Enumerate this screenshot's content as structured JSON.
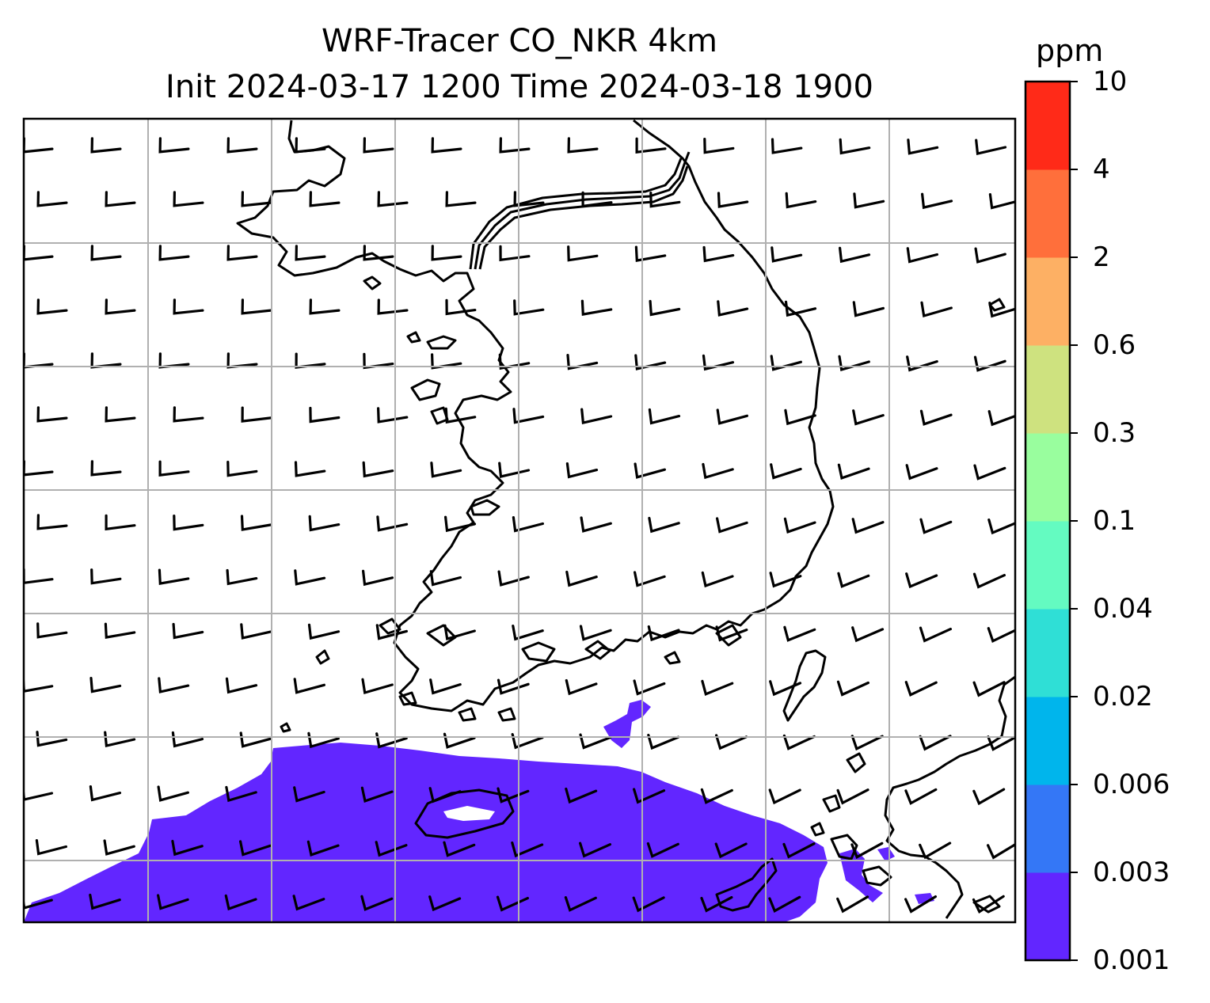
{
  "title": {
    "line1": "WRF-Tracer CO_NKR 4km",
    "line2": "Init 2024-03-17 1200 Time 2024-03-18 1900"
  },
  "colorbar": {
    "unit": "ppm",
    "ticks": [
      "0.001",
      "0.003",
      "0.006",
      "0.02",
      "0.04",
      "0.1",
      "0.3",
      "0.6",
      "2",
      "4",
      "10"
    ],
    "colors": [
      "#6226ff",
      "#3477f6",
      "#00b5ec",
      "#2fdfd6",
      "#64fbc1",
      "#99fe9e",
      "#cee27f",
      "#fdb064",
      "#ff6f3b",
      "#ff2a18"
    ]
  },
  "map": {
    "tracer": "CO_NKR",
    "plume_level": "0.001",
    "plume_color": "#6226ff",
    "gridlines": true,
    "coastlines": true,
    "wind_barbs": true,
    "wind_direction": "westerly"
  }
}
